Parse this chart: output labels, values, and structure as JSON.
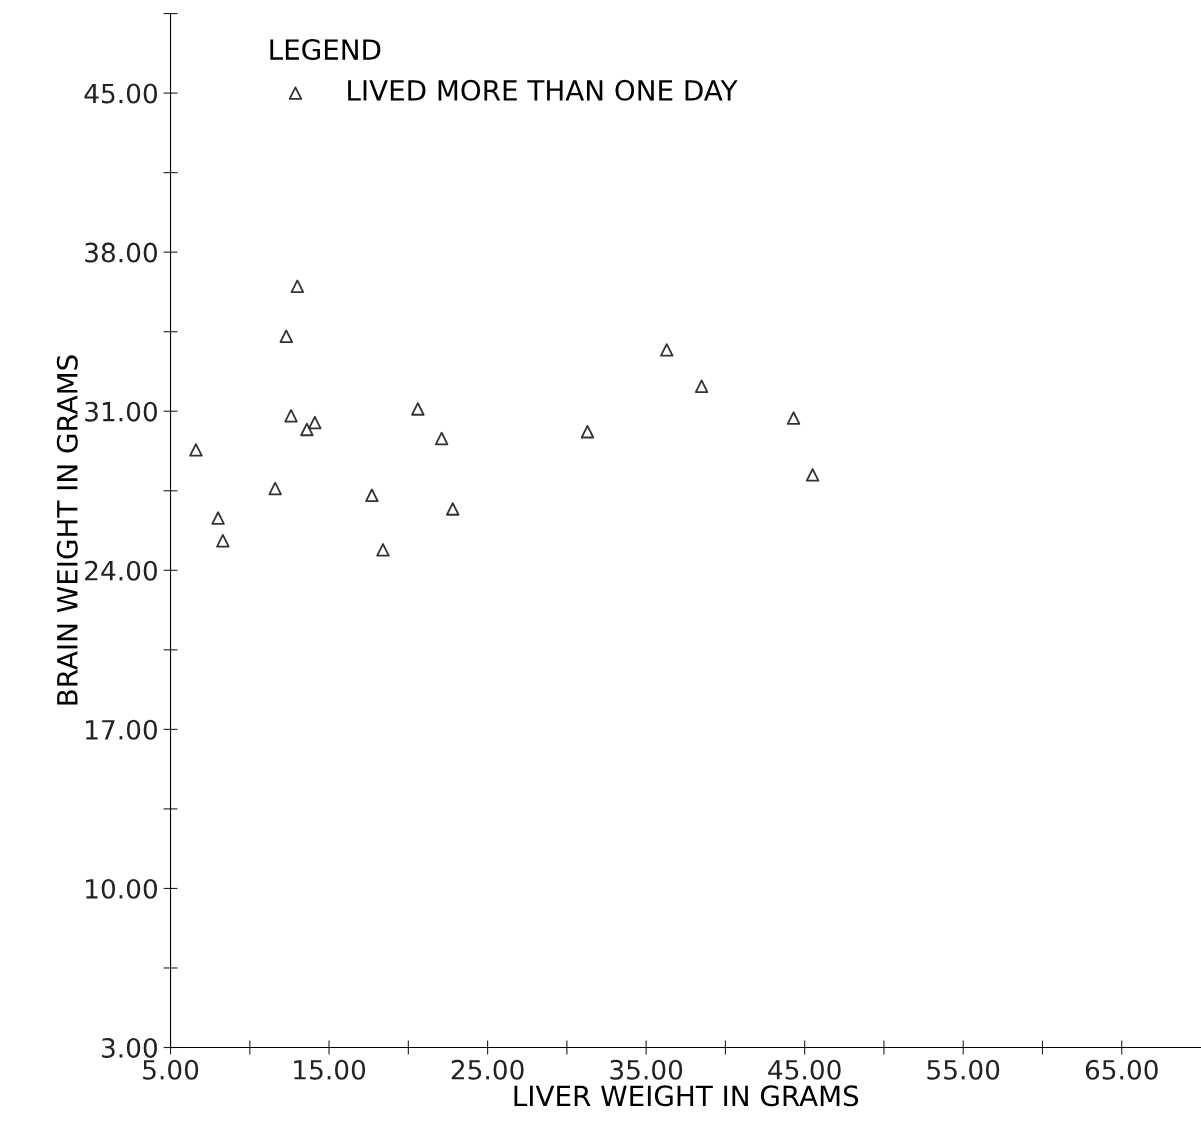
{
  "chart_data": {
    "type": "scatter",
    "xlabel": "LIVER WEIGHT IN GRAMS",
    "ylabel": "BRAIN WEIGHT IN GRAMS",
    "legend_title": "LEGEND",
    "legend": "top left",
    "marker": "triangle",
    "grid": false,
    "xlim": [
      5,
      70
    ],
    "ylim": [
      3,
      48.5
    ],
    "xticks": [
      {
        "value": 5,
        "label": "5.00"
      },
      {
        "value": 10,
        "label": null
      },
      {
        "value": 15,
        "label": "15.00"
      },
      {
        "value": 20,
        "label": null
      },
      {
        "value": 25,
        "label": "25.00"
      },
      {
        "value": 30,
        "label": null
      },
      {
        "value": 35,
        "label": "35.00"
      },
      {
        "value": 40,
        "label": null
      },
      {
        "value": 45,
        "label": "45.00"
      },
      {
        "value": 50,
        "label": null
      },
      {
        "value": 55,
        "label": "55.00"
      },
      {
        "value": 60,
        "label": null
      },
      {
        "value": 65,
        "label": "65.00"
      }
    ],
    "yticks": [
      {
        "value": 3,
        "label": "3.00"
      },
      {
        "value": 6.5,
        "label": null
      },
      {
        "value": 10,
        "label": "10.00"
      },
      {
        "value": 13.5,
        "label": null
      },
      {
        "value": 17,
        "label": "17.00"
      },
      {
        "value": 20.5,
        "label": null
      },
      {
        "value": 24,
        "label": "24.00"
      },
      {
        "value": 27.5,
        "label": null
      },
      {
        "value": 31,
        "label": "31.00"
      },
      {
        "value": 34.5,
        "label": null
      },
      {
        "value": 38,
        "label": "38.00"
      },
      {
        "value": 41.5,
        "label": null
      },
      {
        "value": 45,
        "label": "45.00"
      },
      {
        "value": 48.5,
        "label": null
      }
    ],
    "series": [
      {
        "name": "LIVED MORE THAN ONE DAY",
        "color": "#333333",
        "x": [
          6.6,
          8.0,
          8.3,
          11.6,
          12.3,
          13.0,
          12.6,
          13.6,
          14.1,
          17.7,
          18.4,
          20.6,
          22.1,
          22.8,
          31.3,
          36.3,
          38.5,
          44.3,
          45.5
        ],
        "values": [
          29.3,
          26.3,
          25.3,
          27.6,
          34.3,
          36.5,
          30.8,
          30.2,
          30.5,
          27.3,
          24.9,
          31.1,
          29.8,
          26.7,
          30.1,
          33.7,
          32.1,
          30.7,
          28.2
        ]
      }
    ]
  }
}
